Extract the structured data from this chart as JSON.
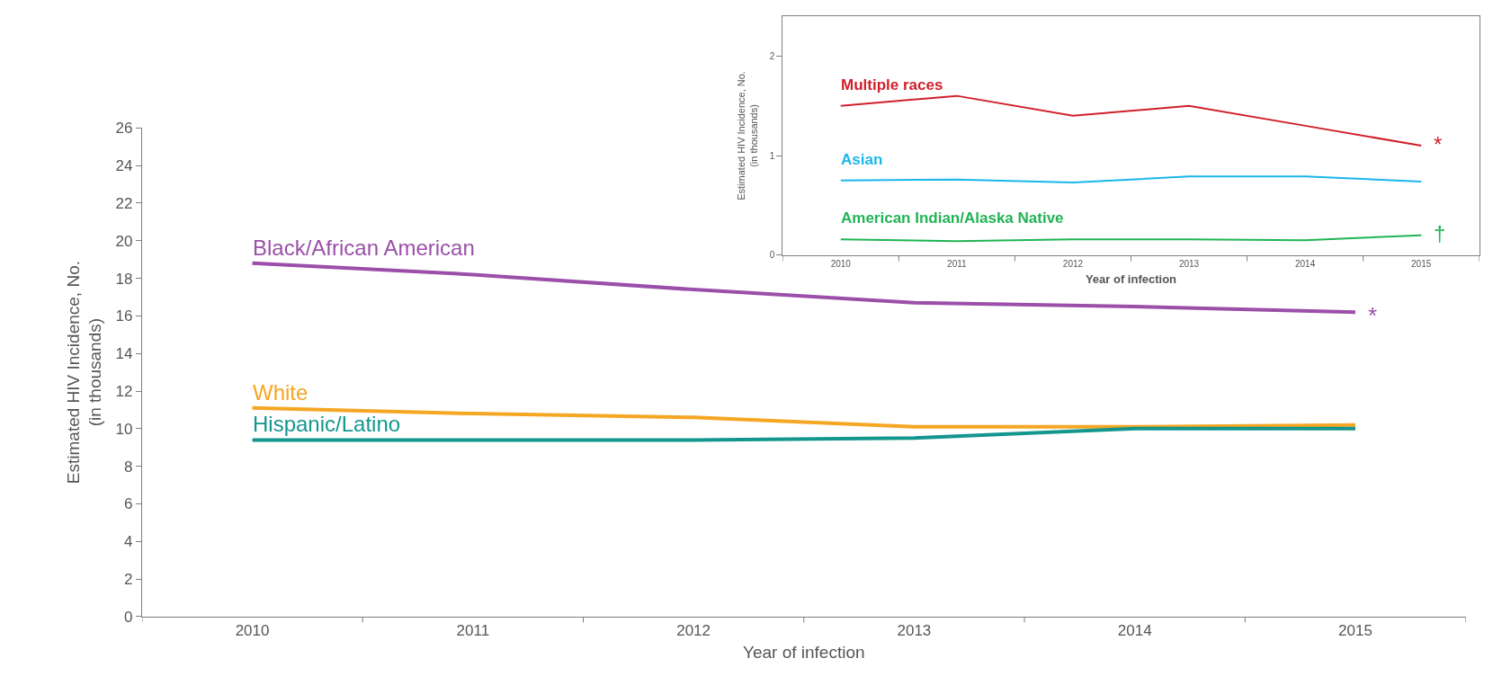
{
  "chart_data": [
    {
      "type": "line",
      "xlabel": "Year of infection",
      "ylabel": "Estimated HIV Incidence, No.\n(in thousands)",
      "categories": [
        "2010",
        "2011",
        "2012",
        "2013",
        "2014",
        "2015"
      ],
      "series": [
        {
          "name": "Black/African American",
          "color": "#9b4fa9",
          "values": [
            18.8,
            18.2,
            17.4,
            16.7,
            16.5,
            16.2
          ]
        },
        {
          "name": "White",
          "color": "#f5a623",
          "values": [
            11.1,
            10.8,
            10.6,
            10.1,
            10.1,
            10.2
          ]
        },
        {
          "name": "Hispanic/Latino",
          "color": "#13968e",
          "values": [
            9.4,
            9.4,
            9.4,
            9.5,
            10.0,
            10.0
          ]
        }
      ],
      "annotations": [
        {
          "text": "*",
          "x": "2015",
          "y": 16.2
        }
      ],
      "ylim": [
        0,
        26
      ],
      "yticks": [
        0,
        2,
        4,
        6,
        8,
        10,
        12,
        14,
        16,
        18,
        20,
        22,
        24,
        26
      ],
      "marker": "none",
      "line_style": "solid"
    },
    {
      "type": "line",
      "xlabel": "Year of infection",
      "ylabel": "Estimated HIV Incidence, No.\n(in thousands)",
      "categories": [
        "2010",
        "2011",
        "2012",
        "2013",
        "2014",
        "2015"
      ],
      "series": [
        {
          "name": "Multiple races",
          "color": "#d0202a",
          "values": [
            1.5,
            1.6,
            1.4,
            1.5,
            1.3,
            1.1
          ]
        },
        {
          "name": "Asian",
          "color": "#1ab7ea",
          "values": [
            0.75,
            0.76,
            0.73,
            0.79,
            0.79,
            0.74
          ]
        },
        {
          "name": "American Indian/Alaska Native",
          "color": "#20b455",
          "values": [
            0.16,
            0.14,
            0.16,
            0.16,
            0.15,
            0.2
          ]
        }
      ],
      "annotations": [
        {
          "text": "*",
          "x": "2015",
          "y": 1.1
        },
        {
          "text": "†",
          "x": "2015",
          "y": 0.2
        }
      ],
      "ylim": [
        0,
        2.4
      ],
      "yticks": [
        0,
        1,
        2
      ],
      "marker": "none",
      "line_style": "solid"
    }
  ]
}
